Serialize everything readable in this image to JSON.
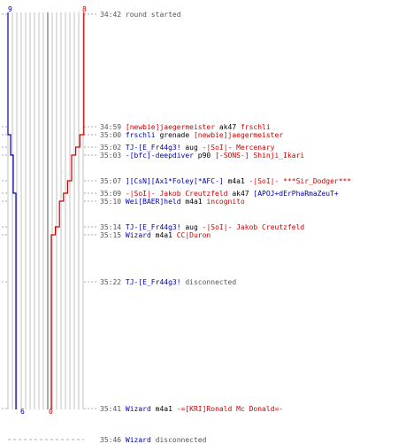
{
  "colors": {
    "blue": "#0000aa",
    "red": "#cc0000",
    "gray": "#555555",
    "grid": "#c0c0c0"
  },
  "score_top": {
    "blue": "9",
    "red": "8"
  },
  "score_bottom": {
    "blue": "6",
    "red": "0"
  },
  "events": [
    {
      "time": "34:42",
      "parts": [
        {
          "t": "round started",
          "c": "gray"
        }
      ]
    },
    {
      "time": "34:59",
      "parts": [
        {
          "t": "[newbie]jaegermeister",
          "c": "red"
        },
        {
          "t": " ak47 ",
          "c": "black"
        },
        {
          "t": "frschli",
          "c": "red"
        }
      ]
    },
    {
      "time": "35:00",
      "parts": [
        {
          "t": "frschli",
          "c": "blue"
        },
        {
          "t": " grenade ",
          "c": "black"
        },
        {
          "t": "[newbie]jaegermeister",
          "c": "red"
        }
      ]
    },
    {
      "time": "35:02",
      "parts": [
        {
          "t": "TJ-[E_Fr44g3!",
          "c": "blue"
        },
        {
          "t": " aug ",
          "c": "black"
        },
        {
          "t": "-|SoI|- Mercenary",
          "c": "red"
        }
      ]
    },
    {
      "time": "35:03",
      "parts": [
        {
          "t": "-[bfc]-deepdiver",
          "c": "blue"
        },
        {
          "t": " p90 ",
          "c": "black"
        },
        {
          "t": "[-SONS-] Shinji_Ikari",
          "c": "red"
        }
      ]
    },
    {
      "time": "35:07",
      "parts": [
        {
          "t": "][CsN][Ax1*Foley[*AFC-]",
          "c": "blue"
        },
        {
          "t": " m4a1 ",
          "c": "black"
        },
        {
          "t": "-|SoI|- ***Sir_Dodger***",
          "c": "red"
        }
      ]
    },
    {
      "time": "35:09",
      "parts": [
        {
          "t": "-|SoI|- Jakob Creutzfeld",
          "c": "red"
        },
        {
          "t": " ak47 ",
          "c": "black"
        },
        {
          "t": "[APOJ+dErPhaRmaZeuT+",
          "c": "blue"
        }
      ]
    },
    {
      "time": "35:10",
      "parts": [
        {
          "t": "Wei[BAER]held",
          "c": "blue"
        },
        {
          "t": " m4a1 ",
          "c": "black"
        },
        {
          "t": "incognito",
          "c": "red"
        }
      ]
    },
    {
      "time": "35:14",
      "parts": [
        {
          "t": "TJ-[E_Fr44g3!",
          "c": "blue"
        },
        {
          "t": " aug ",
          "c": "black"
        },
        {
          "t": "-|SoI|- Jakob Creutzfeld",
          "c": "red"
        }
      ]
    },
    {
      "time": "35:15",
      "parts": [
        {
          "t": "Wizard",
          "c": "blue"
        },
        {
          "t": " m4a1 ",
          "c": "black"
        },
        {
          "t": "CC|Duron",
          "c": "red"
        }
      ]
    },
    {
      "time": "35:22",
      "parts": [
        {
          "t": "TJ-[E_Fr44g3!",
          "c": "blue"
        },
        {
          "t": " disconnected",
          "c": "gray"
        }
      ]
    },
    {
      "time": "35:41",
      "parts": [
        {
          "t": "Wizard",
          "c": "blue"
        },
        {
          "t": " m4a1 ",
          "c": "black"
        },
        {
          "t": "-=[KRI]Ronald Mc Donald=-",
          "c": "red"
        }
      ]
    },
    {
      "time": "35:46",
      "parts": [
        {
          "t": "Wizard",
          "c": "blue"
        },
        {
          "t": " disconnected",
          "c": "gray"
        }
      ]
    }
  ],
  "blue_alive_steps": [
    9,
    9,
    8,
    8,
    7,
    7,
    6,
    6,
    6,
    6,
    6,
    6,
    6
  ],
  "red_alive_steps": [
    8,
    8,
    7,
    6,
    5,
    4,
    3,
    2,
    1,
    0,
    0,
    0,
    0
  ]
}
